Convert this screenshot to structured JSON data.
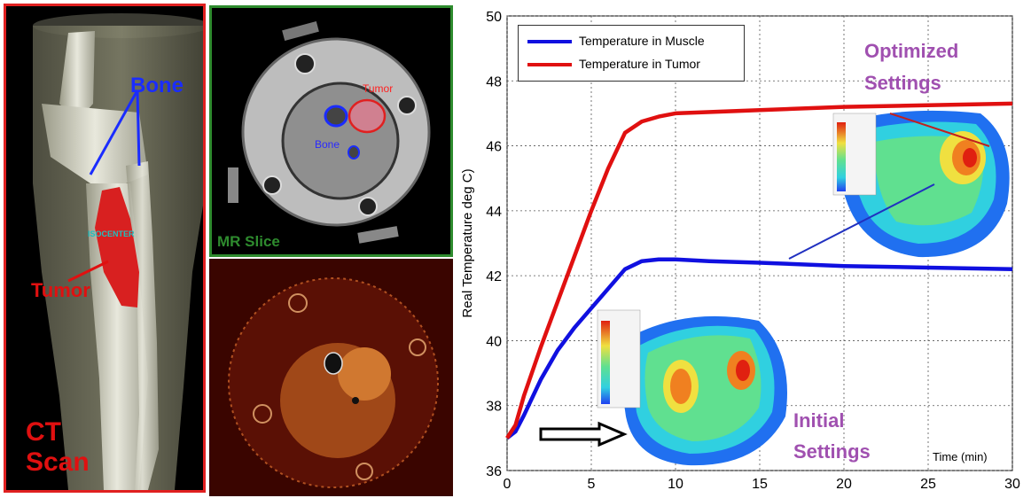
{
  "ct_panel": {
    "title_line1": "CT",
    "title_line2": "Scan",
    "bone_label": "Bone",
    "tumor_label": "Tumor",
    "isocenter_label": "ISOCENTER"
  },
  "mr_panel": {
    "title": "MR Slice",
    "tumor_label": "Tumor",
    "bone_label": "Bone"
  },
  "chart_data": {
    "type": "line",
    "xlabel": "Time (min)",
    "ylabel": "Real Temperature deg C)",
    "xlim": [
      0,
      30
    ],
    "ylim": [
      36,
      50
    ],
    "xticks": [
      0,
      5,
      10,
      15,
      20,
      25,
      30
    ],
    "yticks": [
      36,
      38,
      40,
      42,
      44,
      46,
      48,
      50
    ],
    "grid": true,
    "legend_position": "top-left",
    "series": [
      {
        "name": "Temperature in Muscle",
        "color": "#1010e0",
        "x": [
          0,
          0.5,
          1,
          2,
          3,
          4,
          5,
          6,
          7,
          8,
          9,
          10,
          12,
          15,
          20,
          25,
          30
        ],
        "y": [
          37.0,
          37.2,
          37.7,
          38.8,
          39.7,
          40.4,
          41.0,
          41.6,
          42.2,
          42.45,
          42.5,
          42.5,
          42.45,
          42.4,
          42.3,
          42.25,
          42.2
        ]
      },
      {
        "name": "Temperature in Tumor",
        "color": "#e01010",
        "x": [
          0,
          0.5,
          1,
          2,
          3,
          4,
          5,
          6,
          7,
          8,
          9,
          10,
          15,
          20,
          25,
          30
        ],
        "y": [
          37.0,
          37.4,
          38.3,
          39.8,
          41.2,
          42.6,
          44.0,
          45.3,
          46.4,
          46.75,
          46.9,
          47.0,
          47.1,
          47.2,
          47.25,
          47.3
        ]
      }
    ],
    "annotations": [
      {
        "text_line1": "Optimized",
        "text_line2": "Settings"
      },
      {
        "text_line1": "Initial",
        "text_line2": "Settings"
      }
    ]
  },
  "colors": {
    "ct_border": "#e02020",
    "mr_border": "#2e8b2e",
    "annotation": "#a050b0"
  }
}
